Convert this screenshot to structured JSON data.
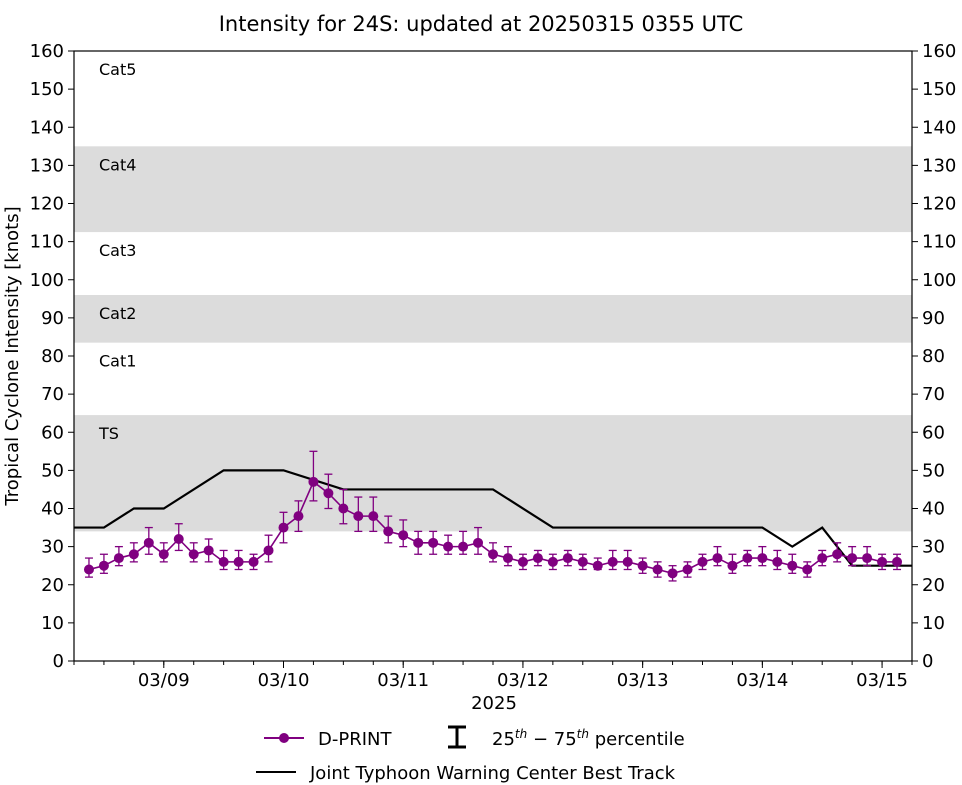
{
  "chart_data": {
    "type": "line",
    "title": "Intensity for 24S: updated at 20250315 0355 UTC",
    "ylabel": "Tropical Cyclone Intensity [knots]",
    "xlabel": "2025",
    "ylim": [
      0,
      160
    ],
    "yticks": [
      0,
      10,
      20,
      30,
      40,
      50,
      60,
      70,
      80,
      90,
      100,
      110,
      120,
      130,
      140,
      150,
      160
    ],
    "xlim": [
      "2025-03-08 06:00",
      "2025-03-15 06:00"
    ],
    "xticks": [
      {
        "date": "2025-03-09 00:00",
        "label": "03/09"
      },
      {
        "date": "2025-03-10 00:00",
        "label": "03/10"
      },
      {
        "date": "2025-03-11 00:00",
        "label": "03/11"
      },
      {
        "date": "2025-03-12 00:00",
        "label": "03/12"
      },
      {
        "date": "2025-03-13 00:00",
        "label": "03/13"
      },
      {
        "date": "2025-03-14 00:00",
        "label": "03/14"
      },
      {
        "date": "2025-03-15 00:00",
        "label": "03/15"
      }
    ],
    "grid": false,
    "bands": [
      {
        "label": "TS",
        "from": 34,
        "to": 64.5,
        "shaded": true,
        "color": "#dcdcdc"
      },
      {
        "label": "Cat1",
        "from": 64.5,
        "to": 83.5,
        "shaded": false
      },
      {
        "label": "Cat2",
        "from": 83.5,
        "to": 96,
        "shaded": true,
        "color": "#dcdcdc"
      },
      {
        "label": "Cat3",
        "from": 96,
        "to": 112.5,
        "shaded": false
      },
      {
        "label": "Cat4",
        "from": 112.5,
        "to": 135,
        "shaded": true,
        "color": "#dcdcdc"
      },
      {
        "label": "Cat5",
        "from": 135,
        "to": 160,
        "shaded": false
      }
    ],
    "series": [
      {
        "name": "D-PRINT",
        "color": "#800080",
        "marker": "circle",
        "points": [
          [
            "2025-03-08 09:00",
            24,
            22,
            27
          ],
          [
            "2025-03-08 12:00",
            25,
            23,
            28
          ],
          [
            "2025-03-08 15:00",
            27,
            25,
            30
          ],
          [
            "2025-03-08 18:00",
            28,
            26,
            31
          ],
          [
            "2025-03-08 21:00",
            31,
            28,
            35
          ],
          [
            "2025-03-09 00:00",
            28,
            26,
            31
          ],
          [
            "2025-03-09 03:00",
            32,
            29,
            36
          ],
          [
            "2025-03-09 06:00",
            28,
            26,
            31
          ],
          [
            "2025-03-09 09:00",
            29,
            26,
            32
          ],
          [
            "2025-03-09 12:00",
            26,
            24,
            29
          ],
          [
            "2025-03-09 15:00",
            26,
            24,
            29
          ],
          [
            "2025-03-09 18:00",
            26,
            24,
            28
          ],
          [
            "2025-03-09 21:00",
            29,
            26,
            33
          ],
          [
            "2025-03-10 00:00",
            35,
            31,
            39
          ],
          [
            "2025-03-10 03:00",
            38,
            34,
            42
          ],
          [
            "2025-03-10 06:00",
            47,
            42,
            55
          ],
          [
            "2025-03-10 09:00",
            44,
            40,
            49
          ],
          [
            "2025-03-10 12:00",
            40,
            36,
            45
          ],
          [
            "2025-03-10 15:00",
            38,
            34,
            43
          ],
          [
            "2025-03-10 18:00",
            38,
            34,
            43
          ],
          [
            "2025-03-10 21:00",
            34,
            31,
            38
          ],
          [
            "2025-03-11 00:00",
            33,
            30,
            37
          ],
          [
            "2025-03-11 03:00",
            31,
            28,
            34
          ],
          [
            "2025-03-11 06:00",
            31,
            28,
            34
          ],
          [
            "2025-03-11 09:00",
            30,
            28,
            33
          ],
          [
            "2025-03-11 12:00",
            30,
            28,
            34
          ],
          [
            "2025-03-11 15:00",
            31,
            28,
            35
          ],
          [
            "2025-03-11 18:00",
            28,
            26,
            31
          ],
          [
            "2025-03-11 21:00",
            27,
            25,
            30
          ],
          [
            "2025-03-12 00:00",
            26,
            24,
            28
          ],
          [
            "2025-03-12 03:00",
            27,
            25,
            29
          ],
          [
            "2025-03-12 06:00",
            26,
            24,
            28
          ],
          [
            "2025-03-12 09:00",
            27,
            25,
            29
          ],
          [
            "2025-03-12 12:00",
            26,
            24,
            28
          ],
          [
            "2025-03-12 15:00",
            25,
            24,
            27
          ],
          [
            "2025-03-12 18:00",
            26,
            24,
            29
          ],
          [
            "2025-03-12 21:00",
            26,
            24,
            29
          ],
          [
            "2025-03-13 00:00",
            25,
            23,
            27
          ],
          [
            "2025-03-13 03:00",
            24,
            22,
            26
          ],
          [
            "2025-03-13 06:00",
            23,
            21,
            25
          ],
          [
            "2025-03-13 09:00",
            24,
            22,
            26
          ],
          [
            "2025-03-13 12:00",
            26,
            24,
            28
          ],
          [
            "2025-03-13 15:00",
            27,
            25,
            30
          ],
          [
            "2025-03-13 18:00",
            25,
            23,
            28
          ],
          [
            "2025-03-13 21:00",
            27,
            25,
            29
          ],
          [
            "2025-03-14 00:00",
            27,
            25,
            30
          ],
          [
            "2025-03-14 03:00",
            26,
            24,
            29
          ],
          [
            "2025-03-14 06:00",
            25,
            23,
            28
          ],
          [
            "2025-03-14 09:00",
            24,
            22,
            26
          ],
          [
            "2025-03-14 12:00",
            27,
            25,
            29
          ],
          [
            "2025-03-14 15:00",
            28,
            26,
            31
          ],
          [
            "2025-03-14 18:00",
            27,
            25,
            30
          ],
          [
            "2025-03-14 21:00",
            27,
            25,
            30
          ],
          [
            "2025-03-15 00:00",
            26,
            24,
            28
          ],
          [
            "2025-03-15 03:00",
            26,
            24,
            28
          ]
        ]
      },
      {
        "name": "Joint Typhoon Warning Center Best Track",
        "color": "#000000",
        "points": [
          [
            "2025-03-08 06:00",
            35
          ],
          [
            "2025-03-08 12:00",
            35
          ],
          [
            "2025-03-08 18:00",
            40
          ],
          [
            "2025-03-09 00:00",
            40
          ],
          [
            "2025-03-09 12:00",
            50
          ],
          [
            "2025-03-10 00:00",
            50
          ],
          [
            "2025-03-10 12:00",
            45
          ],
          [
            "2025-03-11 18:00",
            45
          ],
          [
            "2025-03-12 06:00",
            35
          ],
          [
            "2025-03-14 00:00",
            35
          ],
          [
            "2025-03-14 06:00",
            30
          ],
          [
            "2025-03-14 12:00",
            35
          ],
          [
            "2025-03-14 18:00",
            25
          ],
          [
            "2025-03-15 06:00",
            25
          ]
        ]
      }
    ],
    "legend": {
      "placement": "bottom",
      "entries": [
        {
          "label": "D-PRINT"
        },
        {
          "label": "25th - 75th percentile"
        },
        {
          "label": "Joint Typhoon Warning Center Best Track"
        }
      ]
    }
  }
}
